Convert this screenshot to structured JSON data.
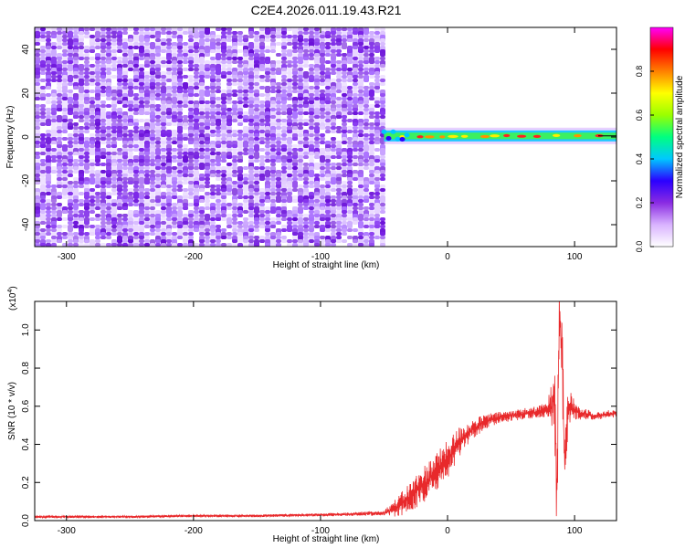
{
  "figure_title": "C2E4.2026.011.19.43.R21",
  "chart_data": [
    {
      "type": "heatmap",
      "title": "C2E4.2026.011.19.43.R21",
      "xlabel": "Height of straight line (km)",
      "ylabel": "Frequency (Hz)",
      "xlim": [
        -325,
        133
      ],
      "ylim": [
        -50,
        50
      ],
      "x_ticks": [
        -300,
        -200,
        -100,
        0,
        100
      ],
      "x_tick_labels": [
        "-300",
        "-200",
        "-100",
        "0",
        "100"
      ],
      "y_ticks": [
        -40,
        -20,
        0,
        20,
        40
      ],
      "y_tick_labels": [
        "-40",
        "-20",
        "0",
        "20",
        "40"
      ],
      "noise_region_x": [
        -325,
        -50
      ],
      "signal_band": {
        "x_start": -50,
        "x_end": 133,
        "center_hz": 0.5,
        "half_width_hz": 2.5
      },
      "colorbar": {
        "label": "Normalized spectral amplitude",
        "range": [
          0.0,
          1.0
        ],
        "ticks": [
          0.0,
          0.2,
          0.4,
          0.6,
          0.8
        ],
        "tick_labels": [
          "0.0",
          "0.2",
          "0.4",
          "0.6",
          "0.8"
        ],
        "colors": [
          "#ffffff",
          "#d9b3ff",
          "#8a2be2",
          "#2b00ff",
          "#00c8ff",
          "#00ff80",
          "#9aff00",
          "#ffff00",
          "#ff8000",
          "#ff0000",
          "#ff00ff"
        ]
      }
    },
    {
      "type": "line",
      "xlabel": "Height of straight line (km)",
      "ylabel": "SNR (10 * v/v)",
      "y_scale_label": "(x10",
      "y_scale_exp": "4",
      "y_scale_close": ")",
      "xlim": [
        -325,
        133
      ],
      "ylim": [
        0,
        1.15
      ],
      "x_ticks": [
        -300,
        -200,
        -100,
        0,
        100
      ],
      "x_tick_labels": [
        "-300",
        "-200",
        "-100",
        "0",
        "100"
      ],
      "y_ticks": [
        0.0,
        0.2,
        0.4,
        0.6,
        0.8,
        1.0
      ],
      "y_tick_labels": [
        "0.0",
        "0.2",
        "0.4",
        "0.6",
        "0.8",
        "1.0"
      ],
      "series": [
        {
          "name": "SNR",
          "color": "#e8292b",
          "x": [
            -325,
            -250,
            -200,
            -150,
            -100,
            -70,
            -50,
            -40,
            -30,
            -20,
            -10,
            0,
            10,
            20,
            30,
            40,
            50,
            60,
            70,
            78,
            82,
            84,
            85,
            86,
            87,
            88,
            90,
            92,
            95,
            100,
            105,
            110,
            115,
            120,
            125,
            133
          ],
          "y": [
            0.02,
            0.02,
            0.025,
            0.025,
            0.03,
            0.035,
            0.04,
            0.07,
            0.12,
            0.18,
            0.25,
            0.32,
            0.42,
            0.48,
            0.52,
            0.54,
            0.55,
            0.56,
            0.57,
            0.58,
            0.6,
            0.7,
            0.5,
            0.15,
            0.6,
            1.12,
            0.9,
            0.3,
            0.6,
            0.58,
            0.56,
            0.56,
            0.55,
            0.55,
            0.56,
            0.56
          ],
          "noise_amplitude": [
            0.006,
            0.006,
            0.006,
            0.007,
            0.008,
            0.01,
            0.015,
            0.05,
            0.08,
            0.1,
            0.1,
            0.1,
            0.08,
            0.05,
            0.04,
            0.03,
            0.03,
            0.03,
            0.03,
            0.04,
            0.12,
            0.2,
            0.25,
            0.3,
            0.3,
            0.3,
            0.25,
            0.2,
            0.1,
            0.05,
            0.03,
            0.03,
            0.02,
            0.02,
            0.02,
            0.02
          ]
        }
      ]
    }
  ]
}
